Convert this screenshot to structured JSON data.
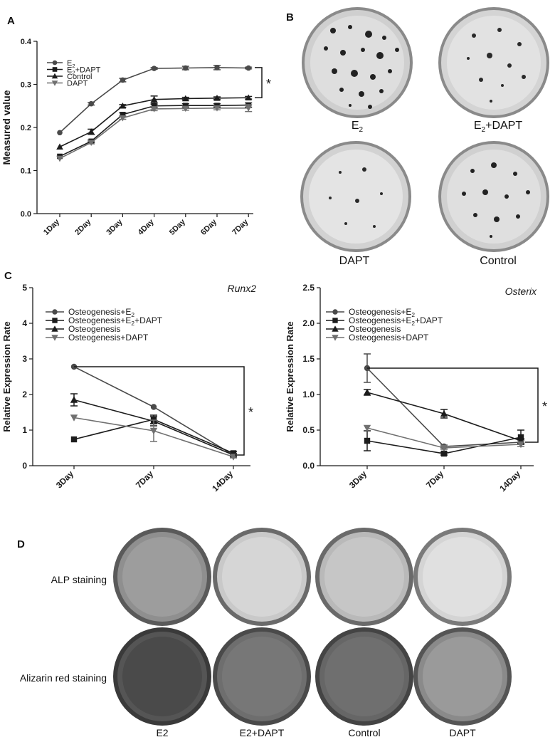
{
  "figure": {
    "panel_letters": [
      "A",
      "B",
      "C",
      "D"
    ],
    "colors": {
      "ink": "#1a1a1a",
      "series_dark": "#1c1c1c",
      "series_mid": "#4a4a4a",
      "series_light": "#707070"
    }
  },
  "chart_data": [
    {
      "type": "line",
      "panel": "A",
      "ylabel": "Measured value",
      "xlabel": "",
      "categories": [
        "1Day",
        "2Day",
        "3Day",
        "4Day",
        "5Day",
        "6Day",
        "7Day"
      ],
      "ylim": [
        0.0,
        0.4
      ],
      "yticks": [
        "0.0",
        "0.1",
        "0.2",
        "0.3",
        "0.4"
      ],
      "legend_placement": "top-left",
      "series": [
        {
          "name": "E2",
          "marker": "circle",
          "values": [
            0.188,
            0.255,
            0.31,
            0.337,
            0.338,
            0.339,
            0.338
          ],
          "err": [
            0,
            0.003,
            0.004,
            0.002,
            0.004,
            0.005,
            0.002
          ]
        },
        {
          "name": "E2+DAPT",
          "marker": "square",
          "values": [
            0.133,
            0.168,
            0.23,
            0.25,
            0.251,
            0.251,
            0.252
          ],
          "err": [
            0,
            0.003,
            0.004,
            0.004,
            0.004,
            0.004,
            0.005
          ]
        },
        {
          "name": "Control",
          "marker": "triangle",
          "values": [
            0.155,
            0.19,
            0.25,
            0.265,
            0.267,
            0.268,
            0.269
          ],
          "err": [
            0,
            0.006,
            0.003,
            0.008,
            0.003,
            0.003,
            0.003
          ]
        },
        {
          "name": "DAPT",
          "marker": "triangle-down",
          "values": [
            0.128,
            0.165,
            0.222,
            0.243,
            0.244,
            0.245,
            0.245
          ],
          "err": [
            0,
            0.003,
            0.003,
            0.004,
            0.004,
            0.004,
            0.008
          ]
        }
      ],
      "annotations": [
        "*"
      ]
    },
    {
      "type": "line",
      "panel": "C",
      "title": "Runx2",
      "ylabel": "Relative Expression Rate",
      "xlabel": "",
      "categories": [
        "3Day",
        "7Day",
        "14Day"
      ],
      "ylim": [
        0,
        5
      ],
      "yticks": [
        "0",
        "1",
        "2",
        "3",
        "4",
        "5"
      ],
      "legend_placement": "top-left",
      "series": [
        {
          "name": "Osteogenesis+E2",
          "marker": "circle",
          "values": [
            2.78,
            1.65,
            0.3
          ],
          "err": [
            0,
            0,
            0.04
          ]
        },
        {
          "name": "Osteogenesis+E2+DAPT",
          "marker": "square",
          "values": [
            0.74,
            1.3,
            0.35
          ],
          "err": [
            0,
            0.12,
            0.05
          ]
        },
        {
          "name": "Osteogenesis",
          "marker": "triangle",
          "values": [
            1.85,
            1.25,
            0.3
          ],
          "err": [
            0.17,
            0.13,
            0.04
          ]
        },
        {
          "name": "Osteogenesis+DAPT",
          "marker": "triangle-down",
          "values": [
            1.35,
            0.98,
            0.25
          ],
          "err": [
            0,
            0.3,
            0.03
          ]
        }
      ],
      "annotations": [
        "*"
      ]
    },
    {
      "type": "line",
      "panel": "C",
      "title": "Osterix",
      "ylabel": "Relative Expression Rate",
      "xlabel": "",
      "categories": [
        "3Day",
        "7Day",
        "14Day"
      ],
      "ylim": [
        0,
        2.5
      ],
      "yticks": [
        "0.0",
        "0.5",
        "1.0",
        "1.5",
        "2.0",
        "2.5"
      ],
      "legend_placement": "top-left",
      "series": [
        {
          "name": "Osteogenesis+E2",
          "marker": "circle",
          "values": [
            1.37,
            0.27,
            0.33
          ],
          "err": [
            0.2,
            0.02,
            0.03
          ]
        },
        {
          "name": "Osteogenesis+E2+DAPT",
          "marker": "square",
          "values": [
            0.35,
            0.17,
            0.4
          ],
          "err": [
            0.14,
            0.02,
            0.1
          ]
        },
        {
          "name": "Osteogenesis",
          "marker": "triangle",
          "values": [
            1.03,
            0.73,
            0.35
          ],
          "err": [
            0.04,
            0.06,
            0.03
          ]
        },
        {
          "name": "Osteogenesis+DAPT",
          "marker": "triangle-down",
          "values": [
            0.53,
            0.25,
            0.3
          ],
          "err": [
            0,
            0.02,
            0.03
          ]
        }
      ],
      "annotations": [
        "*"
      ]
    }
  ],
  "panel_b": {
    "labels": [
      {
        "main": "E",
        "sub": "2",
        "rest": ""
      },
      {
        "main": "E",
        "sub": "2",
        "rest": "+DAPT"
      },
      {
        "main": "DAPT",
        "sub": "",
        "rest": ""
      },
      {
        "main": "Control",
        "sub": "",
        "rest": ""
      }
    ]
  },
  "panel_d": {
    "row_labels": [
      "ALP staining",
      "Alizarin red staining"
    ],
    "column_labels": [
      "E2",
      "E2+DAPT",
      "Control",
      "DAPT"
    ]
  }
}
